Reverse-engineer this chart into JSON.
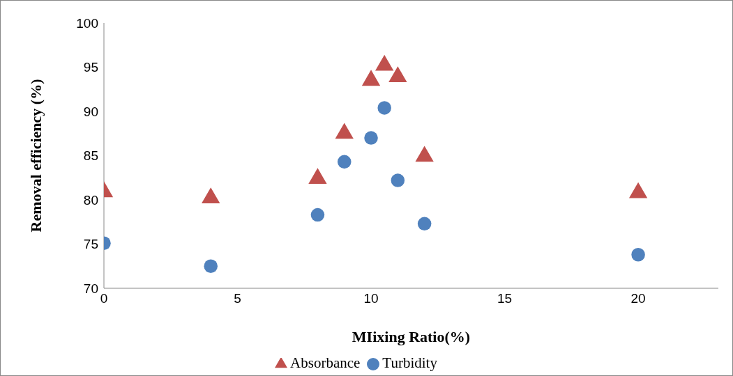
{
  "chart_data": {
    "type": "scatter",
    "xlabel": "MIixing Ratio(%)",
    "ylabel": "Removal   efficiency (%)",
    "xlim": [
      0,
      23
    ],
    "xticks": [
      0,
      5,
      10,
      15,
      20
    ],
    "ylim": [
      70,
      100
    ],
    "yticks": [
      70,
      75,
      80,
      85,
      90,
      95,
      100
    ],
    "grid": false,
    "legend": "bottom",
    "series": [
      {
        "name": "Turbidity",
        "color": "#4f81bd",
        "marker": "circle",
        "x": [
          0,
          4,
          8,
          9,
          10,
          10.5,
          11,
          12,
          20
        ],
        "values": [
          75.1,
          72.5,
          78.3,
          84.3,
          87.0,
          90.4,
          82.2,
          77.3,
          73.8
        ]
      },
      {
        "name": "Absorbance",
        "color": "#c0504d",
        "marker": "triangle",
        "x": [
          0,
          4,
          8,
          9,
          10,
          10.5,
          11,
          12,
          20
        ],
        "values": [
          80.9,
          80.2,
          82.4,
          87.5,
          93.5,
          95.2,
          93.9,
          84.9,
          80.8
        ]
      }
    ]
  }
}
